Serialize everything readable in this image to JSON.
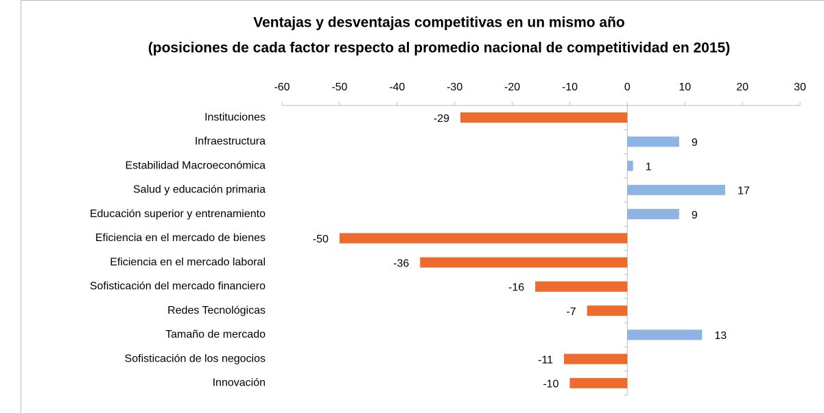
{
  "chart_data": {
    "type": "bar",
    "orientation": "horizontal",
    "title": "Ventajas y desventajas competitivas en un mismo año",
    "subtitle": "(posiciones de cada factor respecto al promedio nacional de competitividad en 2015)",
    "categories": [
      "Instituciones",
      "Infraestructura",
      "Estabilidad Macroeconómica",
      "Salud y educación primaria",
      "Educación superior y entrenamiento",
      "Eficiencia en el mercado de bienes",
      "Eficiencia en el mercado laboral",
      "Sofisticación del mercado financiero",
      "Redes Tecnológicas",
      "Tamaño de mercado",
      "Sofisticación de los negocios",
      "Innovación"
    ],
    "values": [
      -29,
      9,
      1,
      17,
      9,
      -50,
      -36,
      -16,
      -7,
      13,
      -11,
      -10
    ],
    "color_positive": "#8db4e2",
    "color_negative": "#ec6b2d",
    "xlim": [
      -60,
      30
    ],
    "xticks": [
      -60,
      -50,
      -40,
      -30,
      -20,
      -10,
      0,
      10,
      20,
      30
    ],
    "axis_position": "top",
    "grid": false,
    "data_labels": true
  }
}
